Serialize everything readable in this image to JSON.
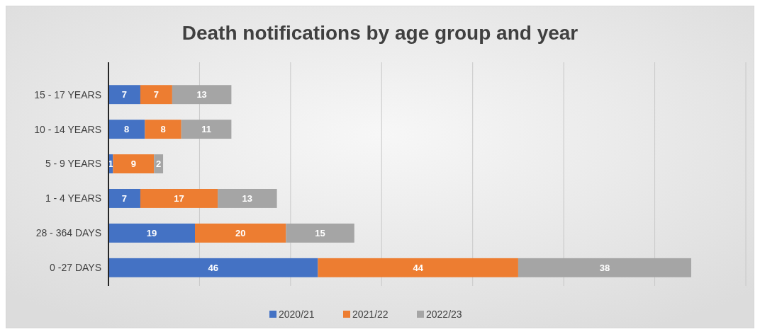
{
  "chart_data": {
    "type": "bar",
    "orientation": "horizontal",
    "stacked": true,
    "title": "Death notifications by age group and year",
    "categories": [
      "15 - 17 YEARS",
      "10 - 14 YEARS",
      "5 - 9 YEARS",
      "1 - 4 YEARS",
      "28 - 364 DAYS",
      "0 -27 DAYS"
    ],
    "series": [
      {
        "name": "2020/21",
        "color": "#4472c4",
        "values": [
          7,
          8,
          1,
          7,
          19,
          46
        ]
      },
      {
        "name": "2021/22",
        "color": "#ed7d31",
        "values": [
          7,
          8,
          9,
          17,
          20,
          44
        ]
      },
      {
        "name": "2022/23",
        "color": "#a5a5a5",
        "values": [
          13,
          11,
          2,
          13,
          15,
          38
        ]
      }
    ],
    "xlim": [
      0,
      140
    ],
    "xticks": [
      {
        "value": 0,
        "label": null
      },
      {
        "value": 20,
        "label": null
      },
      {
        "value": 40,
        "label": null
      },
      {
        "value": 60,
        "label": null
      },
      {
        "value": 80,
        "label": null
      },
      {
        "value": 100,
        "label": null
      },
      {
        "value": 120,
        "label": null
      },
      {
        "value": 140,
        "label": null
      }
    ],
    "tick_labels": "y",
    "grid": "x",
    "legend": "bottom",
    "data_labels": true
  }
}
